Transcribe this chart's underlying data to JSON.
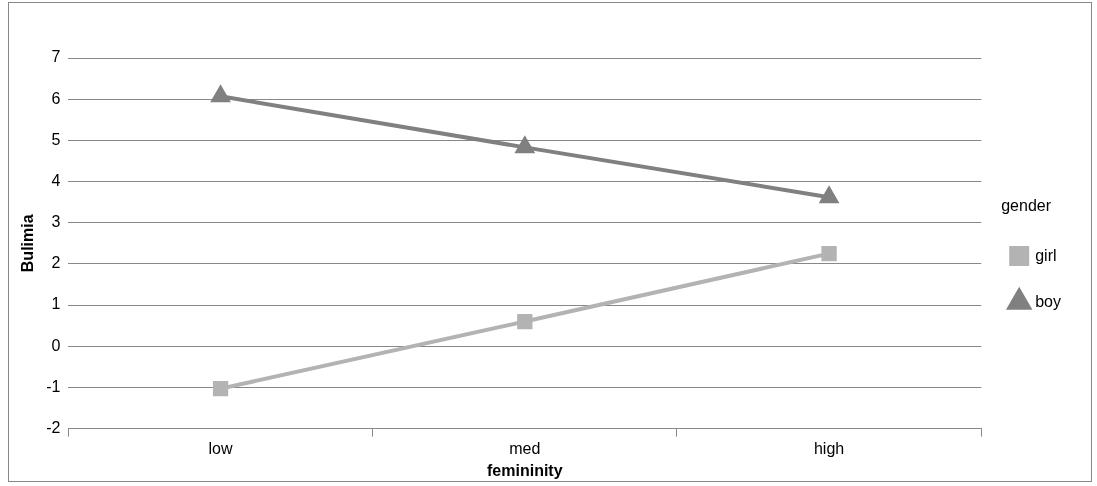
{
  "chart_data": {
    "type": "line",
    "xlabel": "femininity",
    "ylabel": "Bulimia",
    "legend_title": "gender",
    "legend": "right",
    "grid": "y",
    "categories": [
      "low",
      "med",
      "high"
    ],
    "ylim": [
      -2,
      7
    ],
    "yticks": [
      -2,
      -1,
      0,
      1,
      2,
      3,
      4,
      5,
      6,
      7
    ],
    "series": [
      {
        "name": "girl",
        "color": "#b3b3b3",
        "marker": "square",
        "values": [
          -1.03,
          0.6,
          2.25
        ]
      },
      {
        "name": "boy",
        "color": "#808080",
        "marker": "triangle",
        "values": [
          6.07,
          4.83,
          3.62
        ]
      }
    ]
  }
}
